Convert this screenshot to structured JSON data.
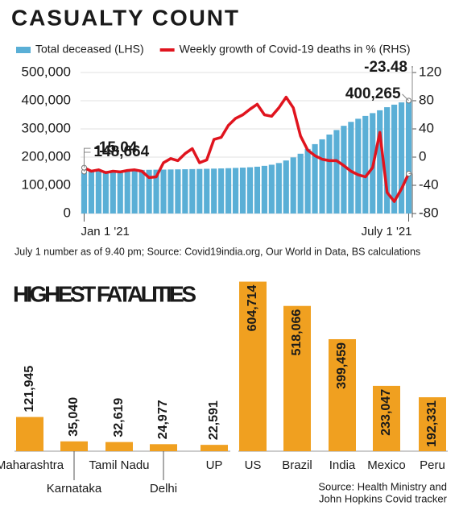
{
  "chart_data": [
    {
      "type": "combo",
      "title": "CASUALTY COUNT",
      "categories": [
        "Jan 1 '21",
        null,
        null,
        null,
        null,
        null,
        null,
        null,
        null,
        null,
        null,
        null,
        null,
        null,
        null,
        null,
        null,
        null,
        null,
        null,
        null,
        null,
        null,
        null,
        null,
        null,
        null,
        null,
        null,
        null,
        null,
        null,
        null,
        null,
        null,
        null,
        null,
        null,
        null,
        null,
        null,
        null,
        null,
        null,
        null,
        "July 1 '21"
      ],
      "series": [
        {
          "name": "Total deceased (LHS)",
          "type": "bar",
          "color": "#5aafd6",
          "values": [
            148664,
            149400,
            150200,
            151000,
            151800,
            152600,
            153300,
            154000,
            154600,
            155000,
            155400,
            155800,
            156200,
            156600,
            157000,
            157500,
            158000,
            158600,
            159200,
            159900,
            160700,
            161700,
            162700,
            164000,
            166000,
            169000,
            173000,
            179000,
            188000,
            199000,
            212000,
            229000,
            246000,
            263000,
            280000,
            296000,
            311000,
            325000,
            336000,
            346000,
            356000,
            366000,
            377000,
            386000,
            394000,
            400265
          ],
          "value_labels": [
            "148,664",
            null,
            null,
            null,
            null,
            null,
            null,
            null,
            null,
            null,
            null,
            null,
            null,
            null,
            null,
            null,
            null,
            null,
            null,
            null,
            null,
            null,
            null,
            null,
            null,
            null,
            null,
            null,
            null,
            null,
            null,
            null,
            null,
            null,
            null,
            null,
            null,
            null,
            null,
            null,
            null,
            null,
            null,
            null,
            null,
            "400,265"
          ]
        },
        {
          "name": "Weekly growth of Covid-19 deaths in % (RHS)",
          "type": "line",
          "axis": "y2",
          "color": "#e0141e",
          "values": [
            -15.04,
            -20,
            -18,
            -22,
            -20,
            -21,
            -19,
            -18,
            -20,
            -29,
            -28,
            -8,
            -2,
            -5,
            5,
            12,
            -8,
            -4,
            25,
            28,
            45,
            55,
            60,
            68,
            75,
            60,
            58,
            70,
            85,
            70,
            30,
            10,
            2,
            -3,
            -5,
            -5,
            -12,
            -20,
            -25,
            -28,
            -15,
            35,
            -50,
            -63,
            -45,
            -23.48
          ],
          "value_labels": [
            "-15.04",
            null,
            null,
            null,
            null,
            null,
            null,
            null,
            null,
            null,
            null,
            null,
            null,
            null,
            null,
            null,
            null,
            null,
            null,
            null,
            null,
            null,
            null,
            null,
            null,
            null,
            null,
            null,
            null,
            null,
            null,
            null,
            null,
            null,
            null,
            null,
            null,
            null,
            null,
            null,
            null,
            null,
            null,
            null,
            null,
            "-23.48"
          ]
        }
      ],
      "ylim": [
        0,
        500000
      ],
      "yticks": [
        0,
        {
          "value": 100000,
          "label": "100,000"
        },
        {
          "value": 200000,
          "label": "200,000"
        },
        {
          "value": 300000,
          "label": "300,000"
        },
        {
          "value": 400000,
          "label": "400,000"
        },
        {
          "value": 500000,
          "label": "500,000"
        }
      ],
      "y2lim": [
        -80,
        120
      ],
      "y2ticks": [
        -80,
        -40,
        0,
        40,
        80,
        120
      ],
      "grid": true,
      "note": "July 1 number as of 9.40 pm; Source: Covid19india.org, Our World in Data, BS calculations"
    },
    {
      "type": "bar",
      "title": "HIGHEST FATALITIES",
      "color": "#f0a020",
      "categories": [
        "Maharashtra",
        "Karnataka",
        "Tamil Nadu",
        "Delhi",
        "UP"
      ],
      "values": [
        121945,
        35040,
        32619,
        24977,
        22591
      ],
      "value_labels": [
        "121,945",
        "35,040",
        "32,619",
        "24,977",
        "22,591"
      ]
    },
    {
      "type": "bar",
      "color": "#f0a020",
      "categories": [
        "US",
        "Brazil",
        "India",
        "Mexico",
        "Peru"
      ],
      "values": [
        604714,
        518066,
        399459,
        233047,
        192331
      ],
      "value_labels": [
        "604,714",
        "518,066",
        "399,459",
        "233,047",
        "192,331"
      ],
      "source": [
        "Source: Health Ministry and",
        "John Hopkins Covid tracker"
      ]
    }
  ]
}
